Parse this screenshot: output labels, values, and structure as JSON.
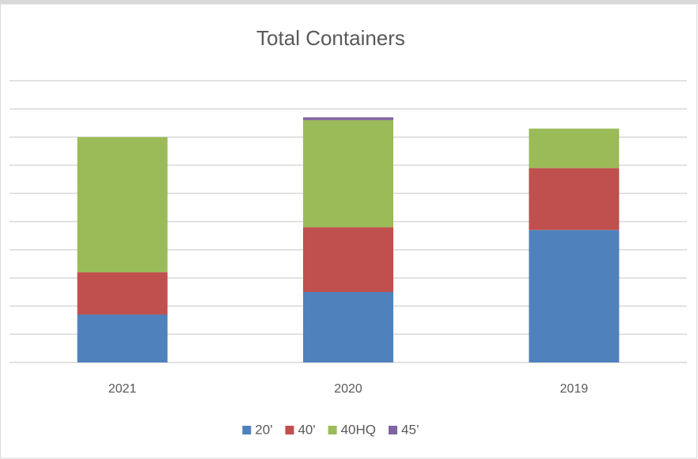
{
  "chart_data": {
    "type": "stacked_bar",
    "title": "Total Containers",
    "categories": [
      "2021",
      "2020",
      "2019"
    ],
    "series": [
      {
        "name": "20'",
        "color": "#4f81bd",
        "values": [
          1.7,
          2.5,
          4.7
        ]
      },
      {
        "name": "40'",
        "color": "#c0504d",
        "values": [
          1.5,
          2.3,
          2.2
        ]
      },
      {
        "name": "40HQ",
        "color": "#9bbb59",
        "values": [
          4.8,
          3.8,
          1.4
        ]
      },
      {
        "name": "45’",
        "color": "#8064a2",
        "values": [
          0,
          0.1,
          0
        ]
      }
    ],
    "ylim": [
      0,
      10
    ],
    "yticks": [
      0,
      1,
      2,
      3,
      4,
      5,
      6,
      7,
      8,
      9,
      10
    ],
    "grid": true,
    "legend": "bottom"
  }
}
